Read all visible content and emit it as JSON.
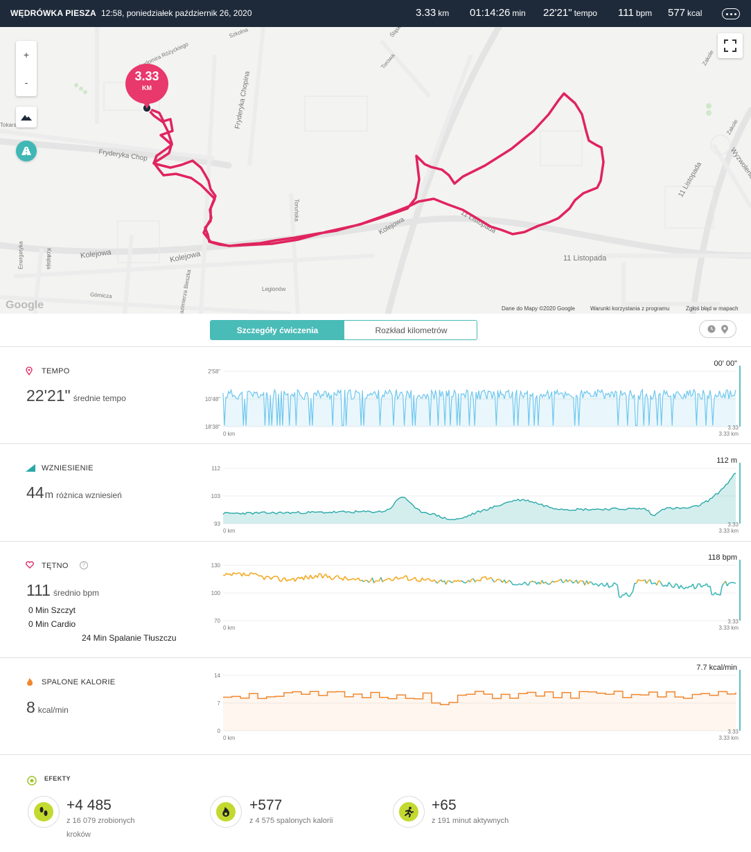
{
  "header": {
    "title": "WĘDRÓWKA PIESZA",
    "date": "12:58, poniedziałek październik 26, 2020",
    "stats": [
      {
        "value": "3.33",
        "unit": "km"
      },
      {
        "value": "01:14:26",
        "unit": "min"
      },
      {
        "value": "22'21\"",
        "unit": "tempo"
      },
      {
        "value": "111",
        "unit": "bpm"
      },
      {
        "value": "577",
        "unit": "kcal"
      }
    ]
  },
  "map": {
    "distance_pin_value": "3.33",
    "distance_pin_unit": "KM",
    "zoom_in": "+",
    "zoom_out": "-",
    "streets": [
      "Kolejowa",
      "Kolejowa",
      "Kolejowa",
      "11 Listopada",
      "11 Listopada",
      "11 Listopada",
      "Fryderyka Chopina",
      "Fryderyka Chop",
      "Toruńska",
      "Torowa",
      "Legionów",
      "Gómicza",
      "Kazimierza Bieszka",
      "Kołłątaja",
      "Energetyka",
      "Ludomira Różyckiego",
      "Zakole",
      "Zakole",
      "Wyzwolenia",
      "Szkolna",
      "Tokarska",
      "Śląska"
    ],
    "google_logo": "Google",
    "attribution": [
      "Dane do Mapy ©2020 Google",
      "Warunki korzystania z programu",
      "Zgłoś błąd w mapach"
    ],
    "route_color": "#e0245e"
  },
  "tabs": {
    "details": "Szczegóły ćwiczenia",
    "splits": "Rozkład kilometrów"
  },
  "tempo": {
    "label": "TEMPO",
    "value": "22'21\"",
    "sub": "średnie tempo",
    "current": "00' 00\"",
    "y_ticks": [
      "2'58\"",
      "10'48\"",
      "18'38\""
    ],
    "x_start": "0 km",
    "x_end": "3.33 km",
    "marker": "3.33",
    "color": "#6ec6ee"
  },
  "elevation": {
    "label": "WZNIESIENIE",
    "value": "44",
    "unit": "m",
    "sub": "różnica wzniesień",
    "current": "112 m",
    "y_ticks": [
      "112",
      "103",
      "93"
    ],
    "x_start": "0 km",
    "x_end": "3.33 km",
    "marker": "3.33",
    "color": "#2aa8a8"
  },
  "heart": {
    "label": "TĘTNO",
    "help": "?",
    "value": "111",
    "sub": "średnio bpm",
    "zones": [
      "0 Min Szczyt",
      "0 Min Cardio",
      "24 Min Spalanie Tłuszczu"
    ],
    "current": "118 bpm",
    "y_ticks": [
      "130",
      "100",
      "70"
    ],
    "x_start": "0 km",
    "x_end": "3.33 km",
    "marker": "3.33",
    "color_fat": "#f2a922",
    "color_normal": "#3fb7b5"
  },
  "calories": {
    "label": "SPALONE KALORIE",
    "value": "8",
    "sub": "kcal/min",
    "current": "7.7 kcal/min",
    "y_ticks": [
      "14",
      "7",
      "0"
    ],
    "x_start": "0 km",
    "x_end": "3.33 km",
    "marker": "3.33",
    "color": "#f0872e"
  },
  "effects": {
    "label": "EFEKTY",
    "items": [
      {
        "value": "+4 485",
        "line1": "z 16 079 zrobionych",
        "line2": "kroków",
        "icon": "footsteps-icon"
      },
      {
        "value": "+577",
        "line1": "z 4 575 spalonych kalorii",
        "line2": "",
        "icon": "flame-icon"
      },
      {
        "value": "+65",
        "line1": "z 191 minut aktywnych",
        "line2": "",
        "icon": "running-icon"
      }
    ]
  }
}
